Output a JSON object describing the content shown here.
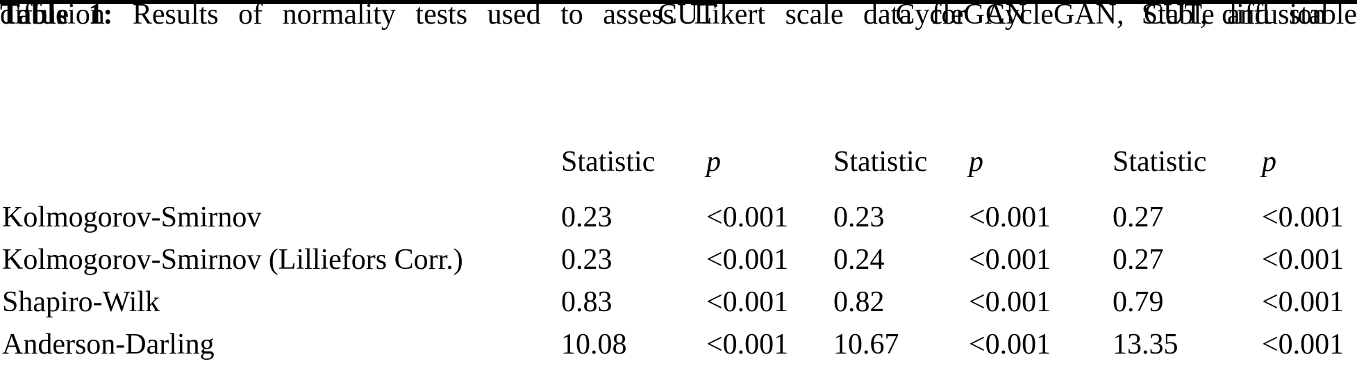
{
  "caption": {
    "label": "Table 1:",
    "line1_rest": "Results of normality tests used to assess Likert scale data for CycleGAN, CUT, and stable",
    "line2": "diffusion"
  },
  "table": {
    "column_groups": [
      "CUT",
      "CycleGAN",
      "Stable diffusion"
    ],
    "subheaders": {
      "statistic": "Statistic",
      "p": "p"
    },
    "rows": [
      {
        "test": "Kolmogorov-Smirnov",
        "cut_statistic": "0.23",
        "cut_p": "<0.001",
        "cyclegan_statistic": "0.23",
        "cyclegan_p": "<0.001",
        "stable_statistic": "0.27",
        "stable_p": "<0.001"
      },
      {
        "test": "Kolmogorov-Smirnov (Lilliefors Corr.)",
        "cut_statistic": "0.23",
        "cut_p": "<0.001",
        "cyclegan_statistic": "0.24",
        "cyclegan_p": "<0.001",
        "stable_statistic": "0.27",
        "stable_p": "<0.001"
      },
      {
        "test": "Shapiro-Wilk",
        "cut_statistic": "0.83",
        "cut_p": "<0.001",
        "cyclegan_statistic": "0.82",
        "cyclegan_p": "<0.001",
        "stable_statistic": "0.79",
        "stable_p": "<0.001"
      },
      {
        "test": "Anderson-Darling",
        "cut_statistic": "10.08",
        "cut_p": "<0.001",
        "cyclegan_statistic": "10.67",
        "cyclegan_p": "<0.001",
        "stable_statistic": "13.35",
        "stable_p": "<0.001"
      }
    ]
  },
  "colors": {
    "text": "#000000",
    "background": "#ffffff",
    "rule": "#000000"
  }
}
